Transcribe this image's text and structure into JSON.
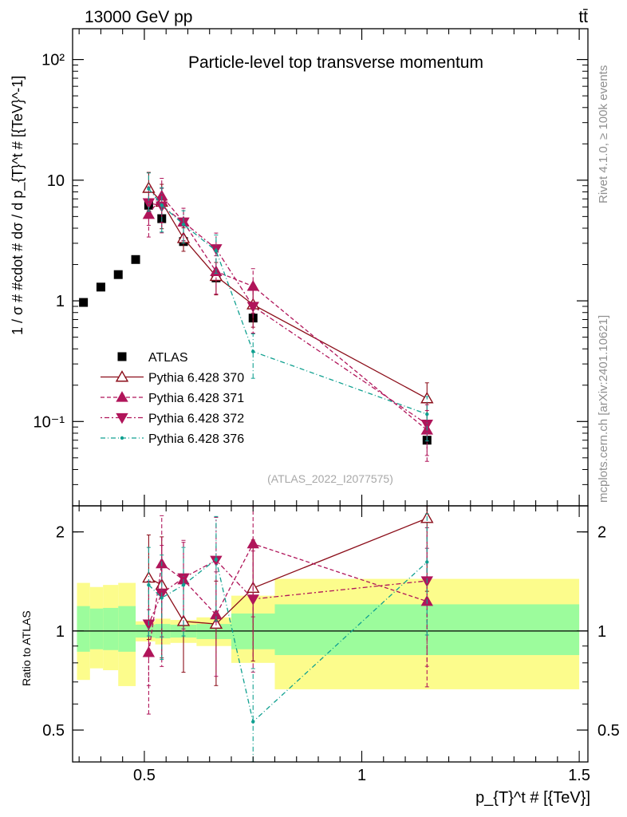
{
  "header": {
    "left_label": "13000 GeV pp",
    "right_label": "tt̄"
  },
  "side": {
    "rivet": "Rivet 4.1.0, ≥ 100k events",
    "mcplots": "mcplots.cern.ch [arXiv:2401.10621]"
  },
  "colors": {
    "ATLAS": "#000000",
    "370": "#8b0d19",
    "371": "#b0155a",
    "372": "#b0155a",
    "376": "#10a090",
    "band_inner": "#9cfc9c",
    "band_outer": "#fcfc8c"
  },
  "chart_data": [
    {
      "type": "scatter",
      "title": "Particle-level top transverse momentum",
      "ylabel": "1 / σ # #cdot # dσ / d p_{T}^t # [{TeV}^-1]",
      "yscale": "log",
      "ylim": [
        0.02,
        180
      ],
      "xlim": [
        0.335,
        1.52
      ],
      "watermark": "(ATLAS_2022_I2077575)",
      "yticks": [
        {
          "value": 0.1,
          "label": "10⁻¹"
        },
        {
          "value": 1,
          "label": "1"
        },
        {
          "value": 10,
          "label": "10"
        },
        {
          "value": 100,
          "label": "10²"
        }
      ],
      "legend_position": "bottom-left",
      "series": [
        {
          "key": "ATLAS",
          "name": "ATLAS",
          "style": "square",
          "x": [
            0.36,
            0.4,
            0.44,
            0.48,
            0.51,
            0.54,
            0.59,
            0.665,
            0.75,
            1.15
          ],
          "y": [
            0.97,
            1.3,
            1.65,
            2.2,
            6.2,
            4.8,
            3.1,
            1.55,
            0.72,
            0.07
          ]
        },
        {
          "key": "370",
          "name": "Pythia 6.428 370",
          "style": "tri-up-open",
          "dash": "",
          "x": [
            0.51,
            0.54,
            0.59,
            0.665,
            0.75,
            1.15
          ],
          "y": [
            8.6,
            6.6,
            3.3,
            1.6,
            0.93,
            0.155
          ],
          "err": [
            0.35,
            0.4,
            0.22,
            0.3,
            0.35,
            0.35
          ]
        },
        {
          "key": "371",
          "name": "Pythia 6.428 371",
          "style": "tri-up",
          "dash": "5,3",
          "x": [
            0.51,
            0.54,
            0.59,
            0.665,
            0.75,
            1.15
          ],
          "y": [
            5.2,
            7.4,
            4.5,
            1.75,
            1.32,
            0.085
          ],
          "err": [
            0.35,
            0.4,
            0.3,
            0.35,
            0.4,
            0.45
          ]
        },
        {
          "key": "372",
          "name": "Pythia 6.428 372",
          "style": "tri-down",
          "dash": "2,3,6,3",
          "x": [
            0.51,
            0.54,
            0.59,
            0.665,
            0.75,
            1.15
          ],
          "y": [
            6.5,
            6.1,
            4.5,
            2.7,
            0.9,
            0.095
          ],
          "err": [
            0.35,
            0.4,
            0.3,
            0.35,
            0.4,
            0.45
          ]
        },
        {
          "key": "376",
          "name": "Pythia 6.428 376",
          "style": "dot",
          "dash": "6,3,1,3",
          "x": [
            0.51,
            0.54,
            0.59,
            0.665,
            0.75,
            1.15
          ],
          "y": [
            8.5,
            6.2,
            4.3,
            2.6,
            0.38,
            0.115
          ],
          "err": [
            0.35,
            0.4,
            0.3,
            0.35,
            0.4,
            0.4
          ]
        }
      ]
    },
    {
      "type": "scatter",
      "ylabel": "Ratio to ATLAS",
      "xlabel": "p_{T}^t # [{TeV}]",
      "yscale": "log",
      "ylim": [
        0.4,
        2.4
      ],
      "xlim": [
        0.335,
        1.52
      ],
      "xticks": [
        {
          "value": 0.5,
          "label": "0.5"
        },
        {
          "value": 1,
          "label": "1"
        },
        {
          "value": 1.5,
          "label": "1.5"
        }
      ],
      "yticks": [
        {
          "value": 0.5,
          "label": "0.5"
        },
        {
          "value": 1,
          "label": "1"
        },
        {
          "value": 2,
          "label": "2"
        }
      ],
      "bands": [
        {
          "x0": 0.345,
          "x1": 0.375,
          "inner": [
            0.865,
            1.19
          ],
          "outer": [
            0.71,
            1.4
          ]
        },
        {
          "x0": 0.375,
          "x1": 0.405,
          "inner": [
            0.88,
            1.17
          ],
          "outer": [
            0.77,
            1.36
          ]
        },
        {
          "x0": 0.405,
          "x1": 0.44,
          "inner": [
            0.875,
            1.175
          ],
          "outer": [
            0.76,
            1.38
          ]
        },
        {
          "x0": 0.44,
          "x1": 0.48,
          "inner": [
            0.865,
            1.19
          ],
          "outer": [
            0.68,
            1.4
          ]
        },
        {
          "x0": 0.48,
          "x1": 0.525,
          "inner": [
            0.955,
            1.045
          ],
          "outer": [
            0.93,
            1.07
          ]
        },
        {
          "x0": 0.525,
          "x1": 0.56,
          "inner": [
            0.95,
            1.05
          ],
          "outer": [
            0.91,
            1.09
          ]
        },
        {
          "x0": 0.56,
          "x1": 0.62,
          "inner": [
            0.955,
            1.045
          ],
          "outer": [
            0.92,
            1.08
          ]
        },
        {
          "x0": 0.62,
          "x1": 0.7,
          "inner": [
            0.945,
            1.05
          ],
          "outer": [
            0.9,
            1.1
          ]
        },
        {
          "x0": 0.7,
          "x1": 0.8,
          "inner": [
            0.88,
            1.13
          ],
          "outer": [
            0.8,
            1.28
          ]
        },
        {
          "x0": 0.8,
          "x1": 1.5,
          "inner": [
            0.845,
            1.205
          ],
          "outer": [
            0.665,
            1.44
          ]
        }
      ],
      "series": [
        {
          "key": "370",
          "style": "tri-up-open",
          "dash": "",
          "x": [
            0.51,
            0.54,
            0.59,
            0.665,
            0.75,
            1.15
          ],
          "y": [
            1.45,
            1.38,
            1.07,
            1.05,
            1.35,
            2.2
          ],
          "err": [
            0.35,
            0.4,
            0.3,
            0.35,
            0.4,
            0.4
          ]
        },
        {
          "key": "371",
          "style": "tri-up",
          "dash": "5,3",
          "x": [
            0.51,
            0.54,
            0.59,
            0.665,
            0.75,
            1.15
          ],
          "y": [
            0.86,
            1.6,
            1.43,
            1.12,
            1.84,
            1.23
          ],
          "err": [
            0.35,
            0.4,
            0.3,
            0.35,
            0.4,
            0.45
          ]
        },
        {
          "key": "372",
          "style": "tri-down",
          "dash": "2,3,6,3",
          "x": [
            0.51,
            0.54,
            0.59,
            0.665,
            0.75,
            1.15
          ],
          "y": [
            1.05,
            1.3,
            1.45,
            1.64,
            1.25,
            1.42
          ],
          "err": [
            0.35,
            0.4,
            0.3,
            0.35,
            0.4,
            0.45
          ]
        },
        {
          "key": "376",
          "style": "dot",
          "dash": "6,3,1,3",
          "x": [
            0.51,
            0.54,
            0.59,
            0.665,
            0.75,
            1.15
          ],
          "y": [
            1.38,
            1.26,
            1.38,
            1.65,
            0.53,
            1.62
          ],
          "err": [
            0.3,
            0.35,
            0.3,
            0.35,
            0.45,
            0.4
          ]
        }
      ]
    }
  ]
}
